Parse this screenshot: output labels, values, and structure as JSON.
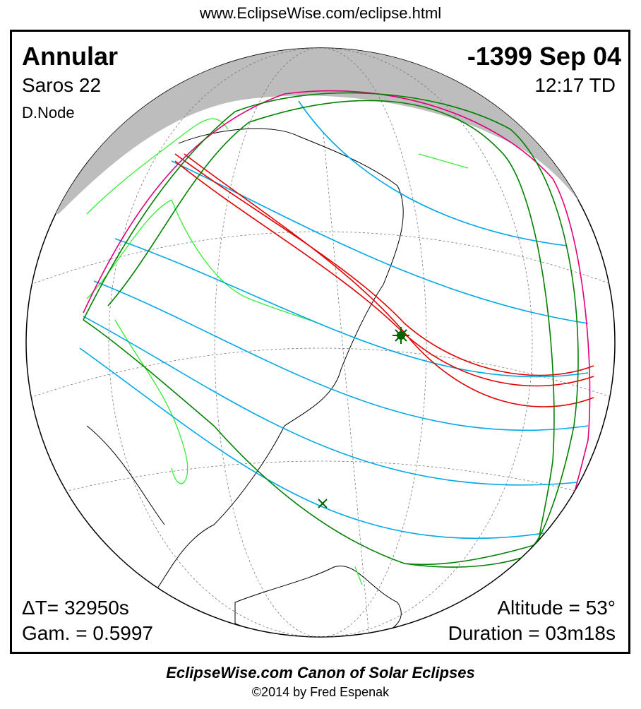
{
  "header": {
    "url": "www.EclipseWise.com/eclipse.html"
  },
  "eclipse": {
    "type": "Annular",
    "saros": "Saros  22",
    "node": "D.Node",
    "date": "-1399 Sep 04",
    "time": "12:17 TD",
    "delta_t": "ΔT=  32950s",
    "gamma": "Gam. = 0.5997",
    "altitude": "Altitude = 53°",
    "duration": "Duration = 03m18s"
  },
  "map": {
    "colors": {
      "night": "#bdbdbd",
      "central_path": "#e00000",
      "penumbral_limits": "#e0007a",
      "contact_curves": "#008000",
      "magnitude_lines": "#00a8e8",
      "borders": "#33ee33"
    },
    "markers": [
      "greatest-eclipse",
      "greatest-duration"
    ]
  },
  "footer": {
    "title": "EclipseWise.com Canon of Solar Eclipses",
    "copyright": "©2014 by Fred Espenak"
  }
}
